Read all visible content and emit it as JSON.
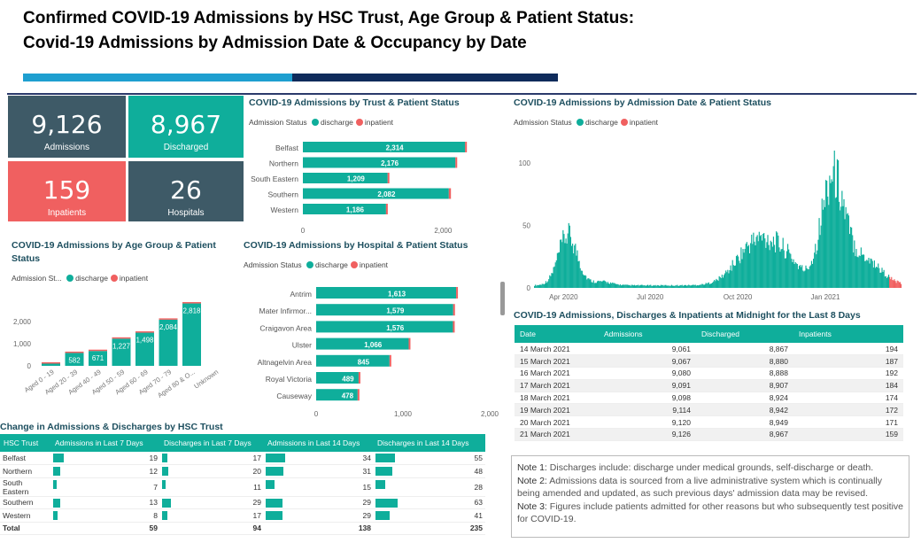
{
  "header": {
    "line1": "Confirmed COVID-19 Admissions by HSC Trust, Age Group & Patient Status:",
    "line2": "Covid-19 Admissions by Admission Date & Occupancy by Date"
  },
  "cards": [
    {
      "value": "9,126",
      "label": "Admissions",
      "color": "#3e5a67"
    },
    {
      "value": "8,967",
      "label": "Discharged",
      "color": "#0fae9b"
    },
    {
      "value": "159",
      "label": "Inpatients",
      "color": "#f06060"
    },
    {
      "value": "26",
      "label": "Hospitals",
      "color": "#3e5a67"
    }
  ],
  "colors": {
    "discharge": "#0fae9b",
    "inpatient": "#f06060"
  },
  "legend": {
    "title": "Admission Status",
    "title_short": "Admission St...",
    "discharge": "discharge",
    "inpatient": "inpatient"
  },
  "trust_chart": {
    "title": "COVID-19 Admissions by Trust & Patient Status",
    "chart_data": {
      "type": "bar",
      "orientation": "horizontal",
      "categories": [
        "Belfast",
        "Northern",
        "South Eastern",
        "Southern",
        "Western"
      ],
      "series": [
        {
          "name": "discharge",
          "values": [
            2314,
            2176,
            1209,
            2082,
            1186
          ]
        },
        {
          "name": "inpatient",
          "values": [
            20,
            24,
            7,
            30,
            8
          ]
        }
      ],
      "data_labels": [
        "2,314",
        "2,176",
        "1,209",
        "2,082",
        "1,186"
      ],
      "xticks": [
        "0",
        "2,000"
      ],
      "xlim": [
        0,
        2400
      ]
    }
  },
  "age_chart": {
    "title": "COVID-19 Admissions by Age Group & Patient Status",
    "chart_data": {
      "type": "bar",
      "categories": [
        "Aged 0 - 19",
        "Aged 20 - 39",
        "Aged 40 - 49",
        "Aged 50 - 59",
        "Aged 60 - 69",
        "Aged 70 - 79",
        "Aged 80 & O...",
        "Unknown"
      ],
      "series": [
        {
          "name": "discharge",
          "values": [
            100,
            582,
            671,
            1227,
            1498,
            2084,
            2818,
            0
          ]
        },
        {
          "name": "inpatient",
          "values": [
            2,
            5,
            7,
            14,
            22,
            35,
            40,
            0
          ]
        }
      ],
      "data_labels": [
        "",
        "582",
        "671",
        "1,227",
        "1,498",
        "2,084",
        "2,818",
        ""
      ],
      "yticks": [
        "0",
        "1,000",
        "2,000"
      ],
      "ylim": [
        0,
        3000
      ]
    }
  },
  "hospital_chart": {
    "title": "COVID-19 Admissions by Hospital & Patient Status",
    "chart_data": {
      "type": "bar",
      "orientation": "horizontal",
      "categories": [
        "Antrim",
        "Mater Infirmor...",
        "Craigavon Area",
        "Ulster",
        "Altnagelvin Area",
        "Royal Victoria",
        "Causeway"
      ],
      "series": [
        {
          "name": "discharge",
          "values": [
            1613,
            1579,
            1576,
            1066,
            845,
            489,
            478
          ]
        },
        {
          "name": "inpatient",
          "values": [
            20,
            20,
            18,
            12,
            10,
            0,
            0
          ]
        }
      ],
      "data_labels": [
        "1,613",
        "1,579",
        "1,576",
        "1,066",
        "845",
        "489",
        "478"
      ],
      "xticks": [
        "0",
        "1,000",
        "2,000"
      ],
      "xlim": [
        0,
        2000
      ]
    }
  },
  "date_chart": {
    "title": "COVID-19 Admissions by Admission Date & Patient Status",
    "chart_data": {
      "type": "bar",
      "x_start": "2020-03-01",
      "x_end": "2021-03-21",
      "xticks": [
        "Apr 2020",
        "Jul 2020",
        "Oct 2020",
        "Jan 2021"
      ],
      "yticks": [
        "0",
        "50",
        "100"
      ],
      "ylim": [
        0,
        110
      ],
      "series": [
        {
          "name": "discharge"
        },
        {
          "name": "inpatient"
        }
      ]
    }
  },
  "midnight": {
    "title": "COVID-19 Admissions, Discharges & Inpatients at Midnight for the Last 8 Days",
    "headers": [
      "Date",
      "Admissions",
      "Discharged",
      "Inpatients"
    ],
    "rows": [
      [
        "14 March 2021",
        "9,061",
        "8,867",
        "194"
      ],
      [
        "15 March 2021",
        "9,067",
        "8,880",
        "187"
      ],
      [
        "16 March 2021",
        "9,080",
        "8,888",
        "192"
      ],
      [
        "17 March 2021",
        "9,091",
        "8,907",
        "184"
      ],
      [
        "18 March 2021",
        "9,098",
        "8,924",
        "174"
      ],
      [
        "19 March 2021",
        "9,114",
        "8,942",
        "172"
      ],
      [
        "20 March 2021",
        "9,120",
        "8,949",
        "171"
      ],
      [
        "21 March 2021",
        "9,126",
        "8,967",
        "159"
      ]
    ]
  },
  "change": {
    "title": "Change in Admissions & Discharges by HSC Trust",
    "headers": [
      "HSC Trust",
      "Admissions in Last 7 Days",
      "Discharges in Last 7 Days",
      "Admissions in Last 14 Days",
      "Discharges in Last 14 Days"
    ],
    "rows": [
      [
        "Belfast",
        "19",
        "17",
        "34",
        "55"
      ],
      [
        "Northern",
        "12",
        "20",
        "31",
        "48"
      ],
      [
        "South Eastern",
        "7",
        "11",
        "15",
        "28"
      ],
      [
        "Southern",
        "13",
        "29",
        "29",
        "63"
      ],
      [
        "Western",
        "8",
        "17",
        "29",
        "41"
      ]
    ],
    "total": [
      "Total",
      "59",
      "94",
      "138",
      "235"
    ]
  },
  "notes": [
    {
      "label": "Note 1:",
      "text": " Discharges include: discharge under medical grounds, self-discharge or death."
    },
    {
      "label": "Note 2:",
      "text": " Admissions data is sourced from a live administrative system which is continually being amended and updated, as such previous days' admission data may be revised."
    },
    {
      "label": "Note 3:",
      "text": " Figures include patients admitted for other reasons but who subsequently test positive for COVID-19."
    }
  ]
}
